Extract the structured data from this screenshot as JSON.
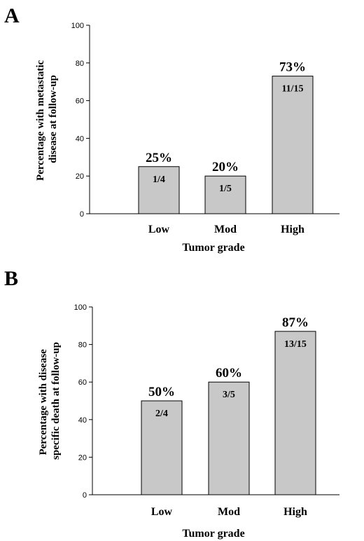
{
  "chart_data": [
    {
      "panel": "A",
      "type": "bar",
      "categories": [
        "Low",
        "Mod",
        "High"
      ],
      "values": [
        25,
        20,
        73
      ],
      "value_labels": [
        "25%",
        "20%",
        "73%"
      ],
      "fraction_labels": [
        "1/4",
        "1/5",
        "11/15"
      ],
      "ylabel_lines": [
        "Percentage with metastatic",
        "disease at follow-up"
      ],
      "xlabel": "Tumor grade",
      "ylim": [
        0,
        100
      ],
      "yticks": [
        0,
        20,
        40,
        60,
        80,
        100
      ],
      "grid": false,
      "bar_color": "#c8c8c8"
    },
    {
      "panel": "B",
      "type": "bar",
      "categories": [
        "Low",
        "Mod",
        "High"
      ],
      "values": [
        50,
        60,
        87
      ],
      "value_labels": [
        "50%",
        "60%",
        "87%"
      ],
      "fraction_labels": [
        "2/4",
        "3/5",
        "13/15"
      ],
      "ylabel_lines": [
        "Percentage with disease",
        "specific death at follow-up"
      ],
      "xlabel": "Tumor grade",
      "ylim": [
        0,
        100
      ],
      "yticks": [
        0,
        20,
        40,
        60,
        80,
        100
      ],
      "grid": false,
      "bar_color": "#c8c8c8"
    }
  ]
}
